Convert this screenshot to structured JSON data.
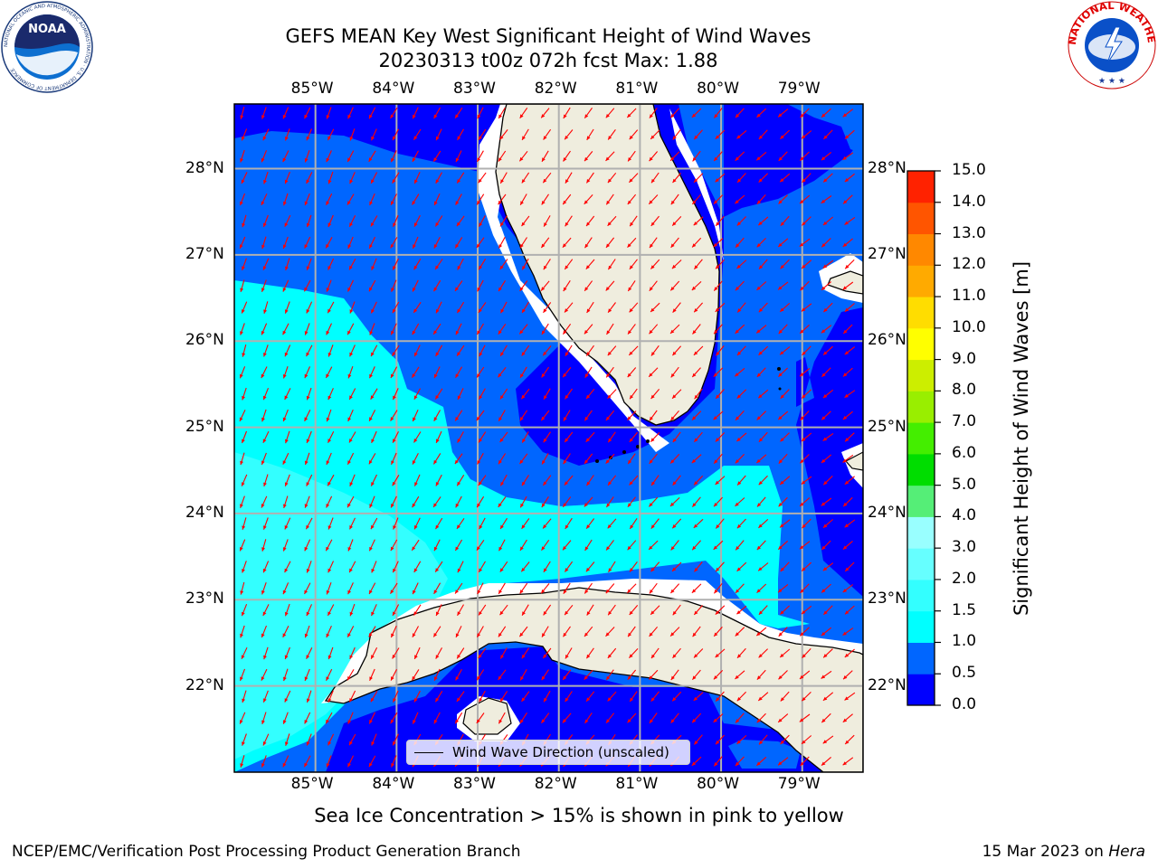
{
  "title_line1": "GEFS MEAN Key West Significant Height of Wind Waves",
  "title_line2": "20230313 t00z 072h fcst   Max: 1.88",
  "lon_labels": [
    "85°W",
    "84°W",
    "83°W",
    "82°W",
    "81°W",
    "80°W",
    "79°W"
  ],
  "lat_labels": [
    "28°N",
    "27°N",
    "26°N",
    "25°N",
    "24°N",
    "23°N",
    "22°N"
  ],
  "extent": {
    "lon_min": -86.0,
    "lon_max": -78.25,
    "lat_min": 21.0,
    "lat_max": 28.75
  },
  "colorbar": {
    "label": "Significant Height of Wind Waves [m]",
    "ticks": [
      "0.0",
      "0.5",
      "1.0",
      "1.5",
      "2.0",
      "3.0",
      "4.0",
      "5.0",
      "6.0",
      "7.0",
      "8.0",
      "9.0",
      "10.0",
      "11.0",
      "12.0",
      "13.0",
      "14.0",
      "15.0"
    ],
    "colors": [
      "#0000ff",
      "#0066ff",
      "#00ffff",
      "#33ffff",
      "#66ffff",
      "#99ffff",
      "#55ee77",
      "#00dd00",
      "#44ee00",
      "#99ee00",
      "#ccee00",
      "#ffff00",
      "#ffdd00",
      "#ffaa00",
      "#ff8800",
      "#ff5500",
      "#ff2200"
    ]
  },
  "legend_label": "Wind Wave Direction (unscaled)",
  "footnote": "Sea Ice Concentration > 15% is shown in pink to yellow",
  "footer_left": "NCEP/EMC/Verification Post Processing Product Generation Branch",
  "footer_date": "15 Mar 2023 on",
  "footer_host": "Hera",
  "noaa_logo": {
    "text": "NOAA",
    "ring": "NATIONAL OCEANIC AND ATMOSPHERIC ADMINISTRATION · U.S. DEPARTMENT OF COMMERCE"
  },
  "nws_logo": {
    "ring": "NATIONAL WEATHER SERVICE"
  },
  "colors": {
    "land": "#efedde",
    "deep": "#0000ff",
    "mid": "#0066ff",
    "cyan": "#00ffff",
    "light": "#33ffff",
    "arrow": "#ff0000",
    "grid": "#b0b0b0"
  }
}
